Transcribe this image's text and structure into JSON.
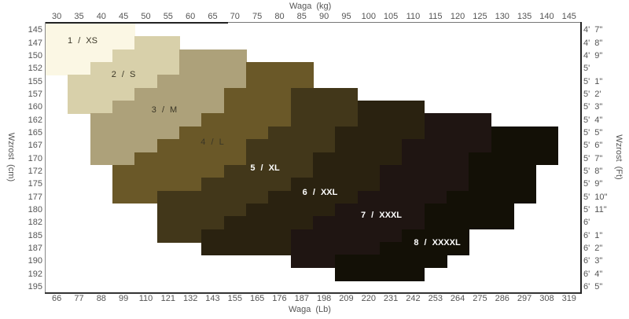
{
  "chart_data": {
    "type": "heatmap",
    "title": "",
    "xlabel": "Waga  (kg)",
    "x2label": "Waga  (Lb)",
    "ylabel": "Wzrost  (cm)",
    "y2label": "Wzrost  (Ft)",
    "x_kg": [
      30,
      35,
      40,
      45,
      50,
      55,
      60,
      65,
      70,
      75,
      80,
      85,
      90,
      95,
      100,
      105,
      110,
      115,
      120,
      125,
      130,
      135,
      140,
      145
    ],
    "x_lb": [
      66,
      77,
      88,
      99,
      110,
      121,
      132,
      143,
      155,
      165,
      176,
      187,
      198,
      209,
      220,
      231,
      242,
      253,
      264,
      275,
      286,
      297,
      308,
      319
    ],
    "y_cm": [
      145,
      147,
      150,
      152,
      155,
      157,
      160,
      162,
      165,
      167,
      170,
      172,
      175,
      177,
      180,
      182,
      185,
      187,
      190,
      192,
      195
    ],
    "y_ft": [
      "4'  7\"",
      "4'  8\"",
      "4'  9\"",
      "5'",
      "5'  1\"",
      "5'  2'",
      "5'  3\"",
      "5'  4\"",
      "5'  5\"",
      "5'  6\"",
      "5'  7\"",
      "5'  8\"",
      "5'  9\"",
      "5'  10\"",
      "5'  11\"",
      "6'",
      "6'  1\"",
      "6'  2\"",
      "6'  3\"",
      "6'  4\"",
      "6'  5\""
    ],
    "grid": false,
    "sizes": [
      {
        "label": "1  /  XS",
        "color": "#fbf7e4",
        "text": "dark",
        "ranges": [
          [
            145,
            30,
            45
          ],
          [
            147,
            30,
            45
          ],
          [
            150,
            30,
            40
          ],
          [
            152,
            30,
            35
          ]
        ]
      },
      {
        "label": "2  /  S",
        "color": "#d8d0aa",
        "text": "dark",
        "ranges": [
          [
            147,
            50,
            55
          ],
          [
            150,
            45,
            55
          ],
          [
            152,
            40,
            55
          ],
          [
            155,
            35,
            50
          ],
          [
            157,
            35,
            45
          ],
          [
            160,
            35,
            40
          ]
        ]
      },
      {
        "label": "3  /  M",
        "color": "#ada17a",
        "text": "dark",
        "ranges": [
          [
            150,
            60,
            70
          ],
          [
            152,
            60,
            70
          ],
          [
            155,
            55,
            70
          ],
          [
            157,
            50,
            65
          ],
          [
            160,
            45,
            65
          ],
          [
            162,
            40,
            60
          ],
          [
            165,
            40,
            55
          ],
          [
            167,
            40,
            50
          ],
          [
            170,
            40,
            45
          ]
        ]
      },
      {
        "label": "4  /  L",
        "color": "#6a5828",
        "text": "dark",
        "ranges": [
          [
            152,
            75,
            85
          ],
          [
            155,
            75,
            85
          ],
          [
            157,
            70,
            80
          ],
          [
            160,
            70,
            80
          ],
          [
            162,
            65,
            80
          ],
          [
            165,
            60,
            75
          ],
          [
            167,
            55,
            70
          ],
          [
            170,
            50,
            70
          ],
          [
            172,
            45,
            65
          ],
          [
            175,
            45,
            60
          ],
          [
            177,
            45,
            50
          ]
        ]
      },
      {
        "label": "5  /  XL",
        "color": "#42371a",
        "text": "light",
        "ranges": [
          [
            157,
            85,
            95
          ],
          [
            160,
            85,
            95
          ],
          [
            162,
            85,
            95
          ],
          [
            165,
            80,
            90
          ],
          [
            167,
            75,
            90
          ],
          [
            170,
            75,
            85
          ],
          [
            172,
            70,
            85
          ],
          [
            175,
            65,
            80
          ],
          [
            177,
            55,
            75
          ],
          [
            180,
            55,
            70
          ],
          [
            182,
            55,
            65
          ],
          [
            185,
            55,
            60
          ]
        ]
      },
      {
        "label": "6  /  XXL",
        "color": "#2a2210",
        "text": "light",
        "ranges": [
          [
            160,
            100,
            110
          ],
          [
            162,
            100,
            110
          ],
          [
            165,
            95,
            110
          ],
          [
            167,
            95,
            105
          ],
          [
            170,
            90,
            105
          ],
          [
            172,
            90,
            100
          ],
          [
            175,
            85,
            100
          ],
          [
            177,
            80,
            95
          ],
          [
            180,
            75,
            90
          ],
          [
            182,
            70,
            85
          ],
          [
            185,
            65,
            80
          ],
          [
            187,
            65,
            80
          ]
        ]
      },
      {
        "label": "7  /  XXXL",
        "color": "#1f1512",
        "text": "light",
        "ranges": [
          [
            162,
            115,
            125
          ],
          [
            165,
            115,
            125
          ],
          [
            167,
            110,
            125
          ],
          [
            170,
            110,
            120
          ],
          [
            172,
            105,
            120
          ],
          [
            175,
            105,
            120
          ],
          [
            177,
            100,
            115
          ],
          [
            180,
            95,
            110
          ],
          [
            182,
            90,
            110
          ],
          [
            185,
            85,
            105
          ],
          [
            187,
            85,
            100
          ],
          [
            190,
            85,
            90
          ]
        ]
      },
      {
        "label": "8  /  XXXXL",
        "color": "#131006",
        "text": "light",
        "ranges": [
          [
            165,
            130,
            140
          ],
          [
            167,
            130,
            140
          ],
          [
            170,
            125,
            140
          ],
          [
            172,
            125,
            135
          ],
          [
            175,
            125,
            135
          ],
          [
            177,
            120,
            135
          ],
          [
            180,
            115,
            130
          ],
          [
            182,
            115,
            130
          ],
          [
            185,
            110,
            120
          ],
          [
            187,
            105,
            120
          ],
          [
            190,
            95,
            115
          ],
          [
            192,
            95,
            110
          ]
        ]
      }
    ]
  }
}
